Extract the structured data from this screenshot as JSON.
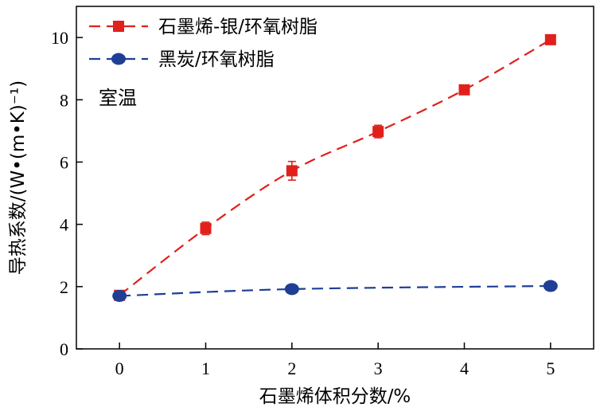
{
  "chart_data": {
    "type": "line",
    "xlabel": "石墨烯体积分数/%",
    "ylabel": "导热系数/(W•(m•K)⁻¹)",
    "annotation": "室温",
    "xlim": [
      -0.5,
      5.5
    ],
    "ylim": [
      0,
      11
    ],
    "x_ticks": [
      0,
      1,
      2,
      3,
      4,
      5
    ],
    "y_ticks": [
      0,
      2,
      4,
      6,
      8,
      10
    ],
    "grid": false,
    "legend_position": "top-left",
    "series": [
      {
        "name": "石墨烯-银/环氧树脂",
        "color": "#e0201b",
        "marker": "square",
        "line_style": "dashed",
        "x": [
          0,
          1,
          2,
          3,
          4,
          5
        ],
        "y": [
          1.72,
          3.87,
          5.72,
          6.98,
          8.32,
          9.93
        ],
        "err": [
          0.08,
          0.2,
          0.3,
          0.2,
          0.1,
          0.08
        ]
      },
      {
        "name": "黑炭/环氧树脂",
        "color": "#1f3f96",
        "marker": "circle",
        "line_style": "dashed",
        "x": [
          0,
          2,
          5
        ],
        "y": [
          1.7,
          1.92,
          2.02
        ],
        "err": []
      }
    ]
  }
}
